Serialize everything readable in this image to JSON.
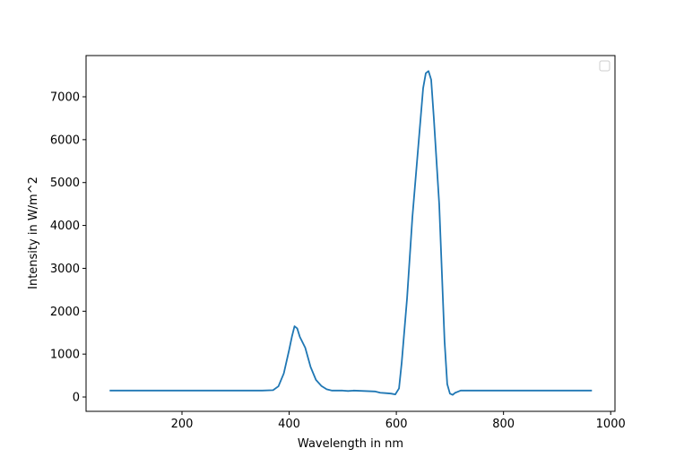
{
  "chart_data": {
    "type": "line",
    "x_label": "Wavelength in nm",
    "y_label": "Intensity in W/m^2",
    "x": [
      65,
      100,
      150,
      200,
      250,
      300,
      350,
      370,
      380,
      390,
      400,
      405,
      410,
      415,
      420,
      430,
      440,
      450,
      460,
      470,
      480,
      500,
      510,
      520,
      540,
      560,
      570,
      580,
      590,
      598,
      605,
      610,
      620,
      630,
      640,
      650,
      655,
      660,
      665,
      670,
      680,
      690,
      695,
      700,
      705,
      710,
      720,
      750,
      800,
      850,
      900,
      965
    ],
    "series": [
      {
        "color": "#1f77b4",
        "values": [
          150,
          150,
          150,
          150,
          150,
          150,
          150,
          160,
          250,
          550,
          1100,
          1400,
          1650,
          1600,
          1400,
          1150,
          700,
          400,
          260,
          180,
          150,
          150,
          140,
          150,
          140,
          130,
          100,
          90,
          80,
          60,
          200,
          800,
          2300,
          4200,
          5700,
          7200,
          7550,
          7600,
          7400,
          6500,
          4500,
          1300,
          300,
          80,
          50,
          100,
          150,
          150,
          150,
          150,
          150,
          150
        ]
      }
    ],
    "xlim": [
      21,
      1008
    ],
    "ylim": [
      -334,
      7961
    ],
    "xticks": [
      200,
      400,
      600,
      800,
      1000
    ],
    "yticks": [
      0,
      1000,
      2000,
      3000,
      4000,
      5000,
      6000,
      7000
    ]
  }
}
